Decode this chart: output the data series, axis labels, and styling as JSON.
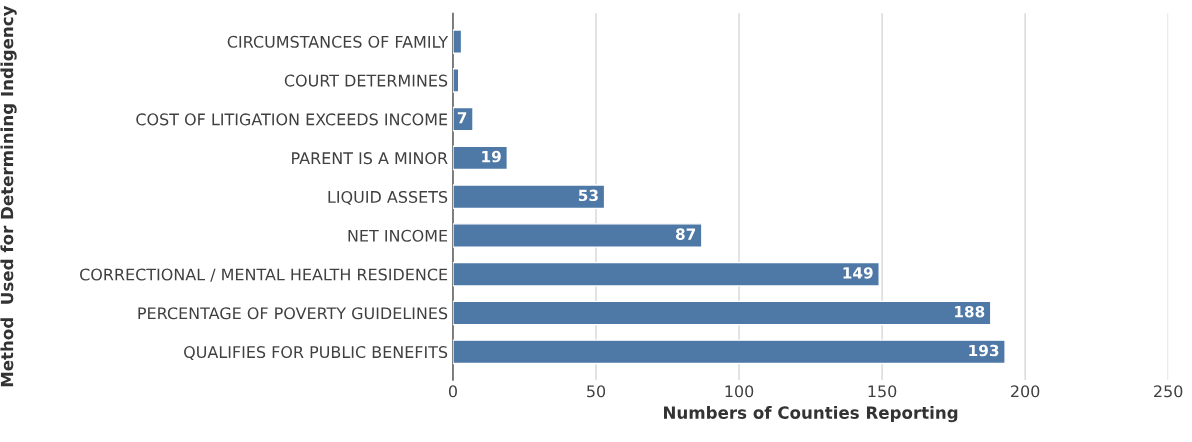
{
  "chart_data": {
    "type": "bar",
    "orientation": "horizontal",
    "xlabel": "Numbers of Counties Reporting",
    "ylabel": "Method  Used for Determining Indigency",
    "categories": [
      "CIRCUMSTANCES OF FAMILY",
      "COURT DETERMINES",
      "COST OF LITIGATION EXCEEDS INCOME",
      "PARENT IS A MINOR",
      "LIQUID ASSETS",
      "NET INCOME",
      "CORRECTIONAL / MENTAL HEALTH RESIDENCE",
      "PERCENTAGE OF POVERTY GUIDELINES",
      "QUALIFIES FOR PUBLIC BENEFITS"
    ],
    "values": [
      3,
      2,
      7,
      19,
      53,
      87,
      149,
      188,
      193
    ],
    "value_labels": [
      null,
      null,
      "7",
      "19",
      "53",
      "87",
      "149",
      "188",
      "193"
    ],
    "color": "#4e79a7",
    "xlim": [
      0,
      250
    ],
    "xticks": [
      0,
      50,
      100,
      150,
      200,
      250
    ],
    "grid": "x"
  }
}
